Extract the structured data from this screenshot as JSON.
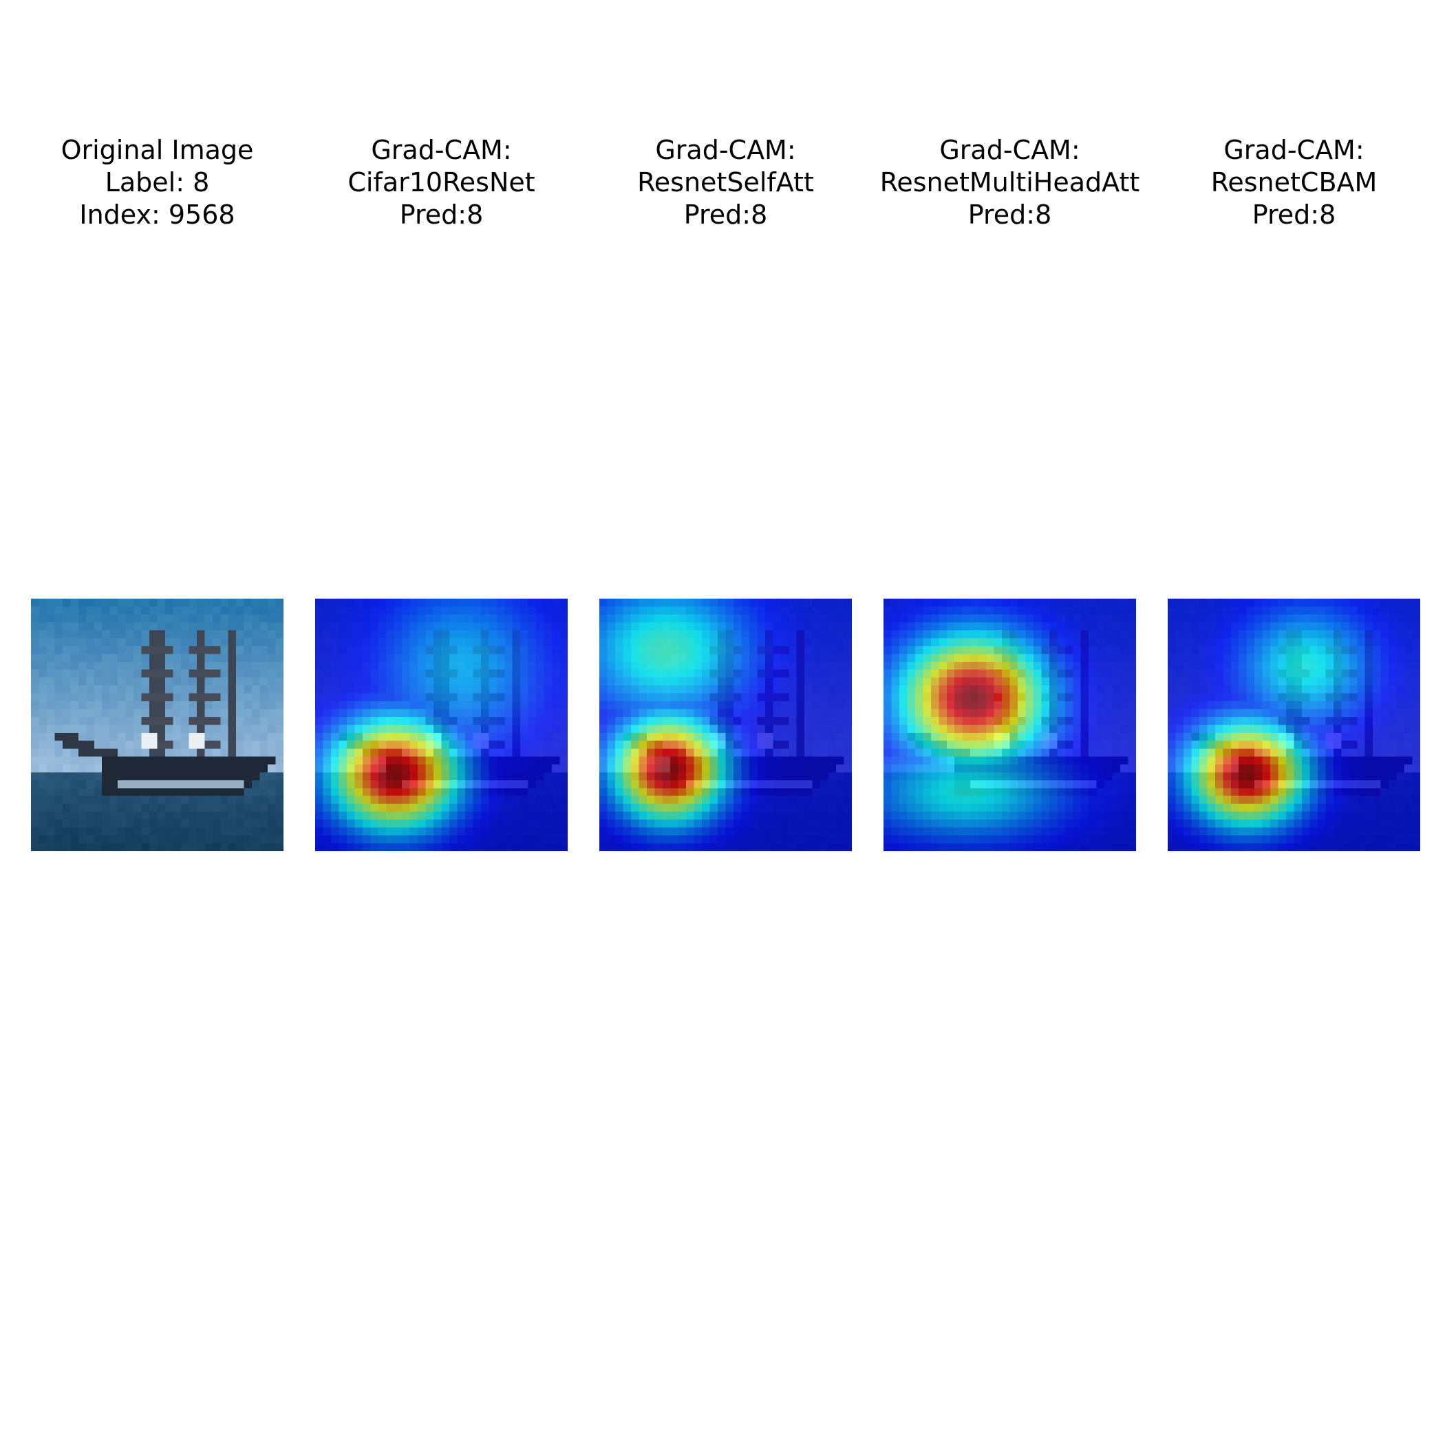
{
  "panels": [
    {
      "title_lines": [
        "Original Image",
        "Label: 8",
        "Index: 9568"
      ],
      "kind": "photo",
      "subject": "sailing-ship-on-sea"
    },
    {
      "title_lines": [
        "Grad-CAM:",
        "Cifar10ResNet",
        "Pred:8"
      ],
      "kind": "heatmap",
      "hot_center": [
        0.3,
        0.68
      ]
    },
    {
      "title_lines": [
        "Grad-CAM:",
        "ResnetSelfAtt",
        "Pred:8"
      ],
      "kind": "heatmap",
      "hot_center": [
        0.26,
        0.66
      ]
    },
    {
      "title_lines": [
        "Grad-CAM:",
        "ResnetMultiHeadAtt",
        "Pred:8"
      ],
      "kind": "heatmap",
      "hot_center": [
        0.34,
        0.38
      ]
    },
    {
      "title_lines": [
        "Grad-CAM:",
        "ResnetCBAM",
        "Pred:8"
      ],
      "kind": "heatmap",
      "hot_center": [
        0.3,
        0.68
      ]
    }
  ],
  "colormap": "jet"
}
